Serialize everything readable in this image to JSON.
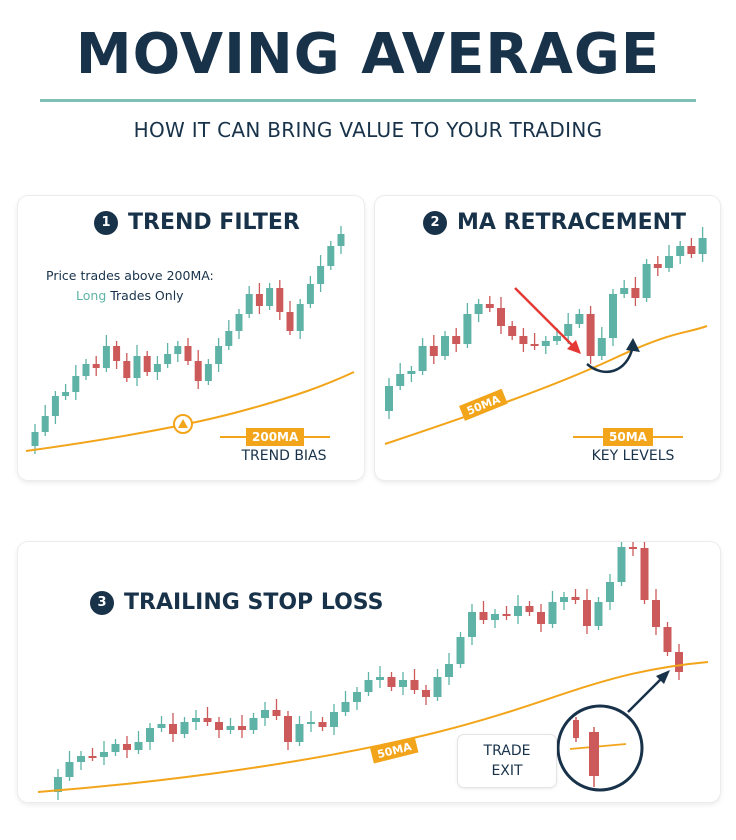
{
  "header": {
    "title": "MOVING AVERAGE",
    "subtitle": "HOW IT CAN BRING VALUE TO YOUR TRADING"
  },
  "colors": {
    "bull": "#5fb3a6",
    "bear": "#cd5a5a",
    "ma": "#f2a51a",
    "text": "#18324a"
  },
  "panels": [
    {
      "number": "1",
      "title": "TREND FILTER",
      "note_line1": "Price trades above 200MA:",
      "note_accent": "Long",
      "note_rest": " Trades Only",
      "ma_tag": "200MA",
      "caption": "TREND BIAS",
      "icon": "up-arrow-icon"
    },
    {
      "number": "2",
      "title": "MA RETRACEMENT",
      "ma_tag": "50MA",
      "ma_label": "50MA",
      "caption": "KEY LEVELS"
    },
    {
      "number": "3",
      "title": "TRAILING STOP LOSS",
      "ma_label": "50MA",
      "exit_line1": "TRADE",
      "exit_line2": "EXIT"
    }
  ]
}
